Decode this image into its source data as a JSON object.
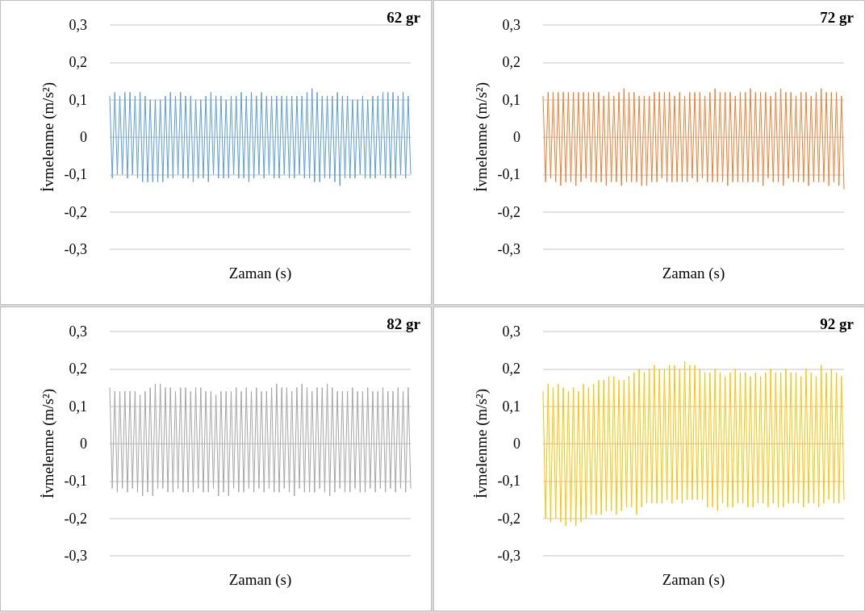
{
  "chart_data": [
    {
      "type": "line",
      "title": "62 gr",
      "xlabel": "Zaman (s)",
      "ylabel": "İvmelenme (m/s²)",
      "ylim": [
        -0.3,
        0.3
      ],
      "yticks": [
        {
          "value": -0.3,
          "label": "-0,3"
        },
        {
          "value": -0.2,
          "label": "-0,2"
        },
        {
          "value": -0.1,
          "label": "-0,1"
        },
        {
          "value": 0,
          "label": "0"
        },
        {
          "value": 0.1,
          "label": "0,1"
        },
        {
          "value": 0.2,
          "label": "0,2"
        },
        {
          "value": 0.3,
          "label": "0,3"
        }
      ],
      "grid": "y",
      "marker": "none",
      "line_style": "solid",
      "categories": [
        null,
        null,
        null,
        null,
        null,
        null,
        null,
        null,
        null,
        null,
        null,
        null,
        null,
        null,
        null,
        null,
        null,
        null,
        null,
        null,
        null,
        null,
        null,
        null,
        null,
        null,
        null,
        null,
        null,
        null,
        null,
        null,
        null,
        null,
        null,
        null,
        null,
        null,
        null,
        null,
        null,
        null,
        null,
        null,
        null,
        null,
        null,
        null,
        null,
        null,
        null,
        null,
        null,
        null,
        null,
        null,
        null,
        null,
        null,
        null,
        null,
        null,
        null,
        null,
        null,
        null,
        null,
        null,
        null,
        null,
        null,
        null,
        null,
        null,
        null,
        null,
        null,
        null,
        null,
        null,
        null,
        null,
        null,
        null,
        null,
        null,
        null,
        null,
        null,
        null,
        null,
        null,
        null,
        null,
        null,
        null,
        null,
        null,
        null,
        null,
        null,
        null,
        null,
        null,
        null,
        null,
        null,
        null,
        null,
        null,
        null,
        null,
        null,
        null,
        null,
        null,
        null,
        null,
        null,
        null
      ],
      "series": [
        {
          "color": "#5b9bd5",
          "values": [
            0.11,
            -0.11,
            0.12,
            -0.1,
            0.11,
            -0.1,
            0.12,
            -0.11,
            0.12,
            -0.1,
            0.11,
            -0.11,
            0.12,
            -0.12,
            0.11,
            -0.12,
            0.1,
            -0.12,
            0.1,
            -0.12,
            0.1,
            -0.12,
            0.11,
            -0.11,
            0.12,
            -0.11,
            0.11,
            -0.1,
            0.12,
            -0.11,
            0.11,
            -0.11,
            0.11,
            -0.12,
            0.1,
            -0.11,
            0.1,
            -0.11,
            0.11,
            -0.12,
            0.12,
            -0.1,
            0.11,
            -0.11,
            0.11,
            -0.11,
            0.1,
            -0.11,
            0.11,
            -0.1,
            0.11,
            -0.11,
            0.12,
            -0.11,
            0.11,
            -0.12,
            0.12,
            -0.11,
            0.11,
            -0.1,
            0.12,
            -0.11,
            0.11,
            -0.1,
            0.11,
            -0.11,
            0.11,
            -0.11,
            0.11,
            -0.1,
            0.11,
            -0.11,
            0.11,
            -0.11,
            0.11,
            -0.1,
            0.11,
            -0.11,
            0.12,
            -0.11,
            0.13,
            -0.12,
            0.12,
            -0.12,
            0.11,
            -0.11,
            0.11,
            -0.11,
            0.11,
            -0.12,
            0.12,
            -0.13,
            0.11,
            -0.11,
            0.11,
            -0.11,
            0.1,
            -0.11,
            0.1,
            -0.1,
            0.11,
            -0.11,
            0.1,
            -0.11,
            0.11,
            -0.11,
            0.11,
            -0.1,
            0.12,
            -0.11,
            0.12,
            -0.11,
            0.12,
            -0.11,
            0.11,
            -0.1,
            0.12,
            -0.11,
            0.11,
            -0.1
          ]
        }
      ]
    },
    {
      "type": "line",
      "title": "72 gr",
      "xlabel": "Zaman (s)",
      "ylabel": "İvmelenme (m/s²)",
      "ylim": [
        -0.3,
        0.3
      ],
      "yticks": [
        {
          "value": -0.3,
          "label": "-0,3"
        },
        {
          "value": -0.2,
          "label": "-0,2"
        },
        {
          "value": -0.1,
          "label": "-0,1"
        },
        {
          "value": 0,
          "label": "0"
        },
        {
          "value": 0.1,
          "label": "0,1"
        },
        {
          "value": 0.2,
          "label": "0,2"
        },
        {
          "value": 0.3,
          "label": "0,3"
        }
      ],
      "grid": "y",
      "marker": "none",
      "line_style": "solid",
      "categories": [
        null,
        null,
        null,
        null,
        null,
        null,
        null,
        null,
        null,
        null,
        null,
        null,
        null,
        null,
        null,
        null,
        null,
        null,
        null,
        null,
        null,
        null,
        null,
        null,
        null,
        null,
        null,
        null,
        null,
        null,
        null,
        null,
        null,
        null,
        null,
        null,
        null,
        null,
        null,
        null,
        null,
        null,
        null,
        null,
        null,
        null,
        null,
        null,
        null,
        null,
        null,
        null,
        null,
        null,
        null,
        null,
        null,
        null,
        null,
        null,
        null,
        null,
        null,
        null,
        null,
        null,
        null,
        null,
        null,
        null,
        null,
        null,
        null,
        null,
        null,
        null,
        null,
        null,
        null,
        null,
        null,
        null,
        null,
        null,
        null,
        null,
        null,
        null,
        null,
        null,
        null,
        null,
        null,
        null,
        null,
        null,
        null,
        null,
        null,
        null,
        null,
        null,
        null,
        null,
        null,
        null,
        null,
        null,
        null,
        null,
        null,
        null,
        null,
        null,
        null,
        null,
        null,
        null,
        null,
        null
      ],
      "series": [
        {
          "color": "#ed7d31",
          "values": [
            0.11,
            -0.12,
            0.12,
            -0.11,
            0.12,
            -0.12,
            0.12,
            -0.13,
            0.12,
            -0.12,
            0.12,
            -0.12,
            0.12,
            -0.13,
            0.12,
            -0.12,
            0.12,
            -0.11,
            0.12,
            -0.12,
            0.12,
            -0.12,
            0.12,
            -0.12,
            0.11,
            -0.13,
            0.12,
            -0.12,
            0.11,
            -0.12,
            0.12,
            -0.13,
            0.13,
            -0.12,
            0.12,
            -0.12,
            0.12,
            -0.12,
            0.11,
            -0.13,
            0.11,
            -0.13,
            0.11,
            -0.12,
            0.12,
            -0.12,
            0.12,
            -0.11,
            0.12,
            -0.12,
            0.12,
            -0.12,
            0.11,
            -0.12,
            0.12,
            -0.12,
            0.11,
            -0.12,
            0.12,
            -0.11,
            0.12,
            -0.12,
            0.12,
            -0.11,
            0.11,
            -0.12,
            0.12,
            -0.12,
            0.13,
            -0.12,
            0.12,
            -0.12,
            0.12,
            -0.13,
            0.12,
            -0.12,
            0.11,
            -0.12,
            0.12,
            -0.12,
            0.12,
            -0.12,
            0.13,
            -0.12,
            0.12,
            -0.12,
            0.12,
            -0.13,
            0.12,
            -0.11,
            0.11,
            -0.12,
            0.12,
            -0.12,
            0.13,
            -0.13,
            0.12,
            -0.11,
            0.12,
            -0.12,
            0.11,
            -0.12,
            0.12,
            -0.12,
            0.12,
            -0.13,
            0.11,
            -0.12,
            0.12,
            -0.12,
            0.13,
            -0.12,
            0.12,
            -0.13,
            0.12,
            -0.12,
            0.12,
            -0.13,
            0.11,
            -0.14
          ]
        }
      ]
    },
    {
      "type": "line",
      "title": "82 gr",
      "xlabel": "Zaman (s)",
      "ylabel": "İvmelenme (m/s²)",
      "ylim": [
        -0.3,
        0.3
      ],
      "yticks": [
        {
          "value": -0.3,
          "label": "-0,3"
        },
        {
          "value": -0.2,
          "label": "-0,2"
        },
        {
          "value": -0.1,
          "label": "-0,1"
        },
        {
          "value": 0,
          "label": "0"
        },
        {
          "value": 0.1,
          "label": "0,1"
        },
        {
          "value": 0.2,
          "label": "0,2"
        },
        {
          "value": 0.3,
          "label": "0,3"
        }
      ],
      "grid": "y",
      "marker": "none",
      "line_style": "solid",
      "categories": [
        null,
        null,
        null,
        null,
        null,
        null,
        null,
        null,
        null,
        null,
        null,
        null,
        null,
        null,
        null,
        null,
        null,
        null,
        null,
        null,
        null,
        null,
        null,
        null,
        null,
        null,
        null,
        null,
        null,
        null,
        null,
        null,
        null,
        null,
        null,
        null,
        null,
        null,
        null,
        null,
        null,
        null,
        null,
        null,
        null,
        null,
        null,
        null,
        null,
        null,
        null,
        null,
        null,
        null,
        null,
        null,
        null,
        null,
        null,
        null,
        null,
        null,
        null,
        null,
        null,
        null,
        null,
        null,
        null,
        null,
        null,
        null,
        null,
        null,
        null,
        null,
        null,
        null,
        null,
        null,
        null,
        null,
        null,
        null,
        null,
        null,
        null,
        null,
        null,
        null,
        null,
        null,
        null,
        null,
        null,
        null,
        null,
        null,
        null,
        null,
        null,
        null,
        null,
        null,
        null,
        null,
        null,
        null,
        null,
        null,
        null,
        null,
        null,
        null,
        null,
        null,
        null,
        null,
        null,
        null
      ],
      "series": [
        {
          "color": "#a5a5a5",
          "values": [
            0.15,
            -0.12,
            0.14,
            -0.13,
            0.14,
            -0.12,
            0.14,
            -0.13,
            0.14,
            -0.12,
            0.14,
            -0.13,
            0.13,
            -0.14,
            0.14,
            -0.13,
            0.15,
            -0.14,
            0.16,
            -0.12,
            0.16,
            -0.12,
            0.15,
            -0.13,
            0.15,
            -0.13,
            0.14,
            -0.12,
            0.15,
            -0.13,
            0.15,
            -0.13,
            0.14,
            -0.13,
            0.15,
            -0.12,
            0.15,
            -0.13,
            0.14,
            -0.13,
            0.14,
            -0.12,
            0.13,
            -0.14,
            0.14,
            -0.13,
            0.14,
            -0.14,
            0.14,
            -0.12,
            0.15,
            -0.13,
            0.14,
            -0.13,
            0.15,
            -0.12,
            0.14,
            -0.13,
            0.15,
            -0.12,
            0.14,
            -0.13,
            0.14,
            -0.12,
            0.15,
            -0.13,
            0.16,
            -0.13,
            0.15,
            -0.12,
            0.15,
            -0.13,
            0.14,
            -0.14,
            0.15,
            -0.12,
            0.16,
            -0.13,
            0.15,
            -0.13,
            0.14,
            -0.13,
            0.15,
            -0.12,
            0.15,
            -0.13,
            0.16,
            -0.14,
            0.15,
            -0.13,
            0.14,
            -0.12,
            0.14,
            -0.13,
            0.14,
            -0.13,
            0.15,
            -0.12,
            0.14,
            -0.13,
            0.14,
            -0.13,
            0.15,
            -0.12,
            0.14,
            -0.13,
            0.14,
            -0.12,
            0.15,
            -0.13,
            0.14,
            -0.12,
            0.14,
            -0.13,
            0.15,
            -0.12,
            0.14,
            -0.13,
            0.15,
            -0.12
          ]
        }
      ]
    },
    {
      "type": "line",
      "title": "92 gr",
      "xlabel": "Zaman (s)",
      "ylabel": "İvmelenme (m/s²)",
      "ylim": [
        -0.3,
        0.3
      ],
      "yticks": [
        {
          "value": -0.3,
          "label": "-0,3"
        },
        {
          "value": -0.2,
          "label": "-0,2"
        },
        {
          "value": -0.1,
          "label": "-0,1"
        },
        {
          "value": 0,
          "label": "0"
        },
        {
          "value": 0.1,
          "label": "0,1"
        },
        {
          "value": 0.2,
          "label": "0,2"
        },
        {
          "value": 0.3,
          "label": "0,3"
        }
      ],
      "grid": "y",
      "marker": "none",
      "line_style": "solid",
      "categories": [
        null,
        null,
        null,
        null,
        null,
        null,
        null,
        null,
        null,
        null,
        null,
        null,
        null,
        null,
        null,
        null,
        null,
        null,
        null,
        null,
        null,
        null,
        null,
        null,
        null,
        null,
        null,
        null,
        null,
        null,
        null,
        null,
        null,
        null,
        null,
        null,
        null,
        null,
        null,
        null,
        null,
        null,
        null,
        null,
        null,
        null,
        null,
        null,
        null,
        null,
        null,
        null,
        null,
        null,
        null,
        null,
        null,
        null,
        null,
        null,
        null,
        null,
        null,
        null,
        null,
        null,
        null,
        null,
        null,
        null,
        null,
        null,
        null,
        null,
        null,
        null,
        null,
        null,
        null,
        null,
        null,
        null,
        null,
        null,
        null,
        null,
        null,
        null,
        null,
        null,
        null,
        null,
        null,
        null,
        null,
        null,
        null,
        null,
        null,
        null,
        null,
        null,
        null,
        null,
        null,
        null,
        null,
        null,
        null,
        null,
        null,
        null,
        null,
        null,
        null,
        null,
        null,
        null,
        null,
        null
      ],
      "series": [
        {
          "color": "#ffc000",
          "values": [
            0.14,
            -0.2,
            0.16,
            -0.21,
            0.15,
            -0.2,
            0.16,
            -0.21,
            0.15,
            -0.22,
            0.14,
            -0.21,
            0.15,
            -0.22,
            0.14,
            -0.21,
            0.16,
            -0.2,
            0.15,
            -0.19,
            0.16,
            -0.19,
            0.17,
            -0.19,
            0.17,
            -0.18,
            0.18,
            -0.18,
            0.18,
            -0.19,
            0.17,
            -0.18,
            0.17,
            -0.17,
            0.18,
            -0.17,
            0.19,
            -0.19,
            0.2,
            -0.17,
            0.19,
            -0.16,
            0.2,
            -0.16,
            0.21,
            -0.16,
            0.2,
            -0.16,
            0.2,
            -0.15,
            0.21,
            -0.16,
            0.21,
            -0.15,
            0.2,
            -0.16,
            0.22,
            -0.15,
            0.21,
            -0.15,
            0.21,
            -0.15,
            0.2,
            -0.15,
            0.19,
            -0.17,
            0.19,
            -0.17,
            0.2,
            -0.18,
            0.19,
            -0.16,
            0.18,
            -0.17,
            0.19,
            -0.17,
            0.2,
            -0.16,
            0.19,
            -0.16,
            0.19,
            -0.17,
            0.18,
            -0.17,
            0.19,
            -0.16,
            0.18,
            -0.16,
            0.19,
            -0.17,
            0.2,
            -0.16,
            0.19,
            -0.17,
            0.19,
            -0.17,
            0.2,
            -0.16,
            0.19,
            -0.16,
            0.19,
            -0.16,
            0.18,
            -0.17,
            0.2,
            -0.16,
            0.19,
            -0.16,
            0.18,
            -0.17,
            0.21,
            -0.16,
            0.19,
            -0.15,
            0.2,
            -0.16,
            0.19,
            -0.16,
            0.18,
            -0.15
          ]
        }
      ]
    }
  ]
}
